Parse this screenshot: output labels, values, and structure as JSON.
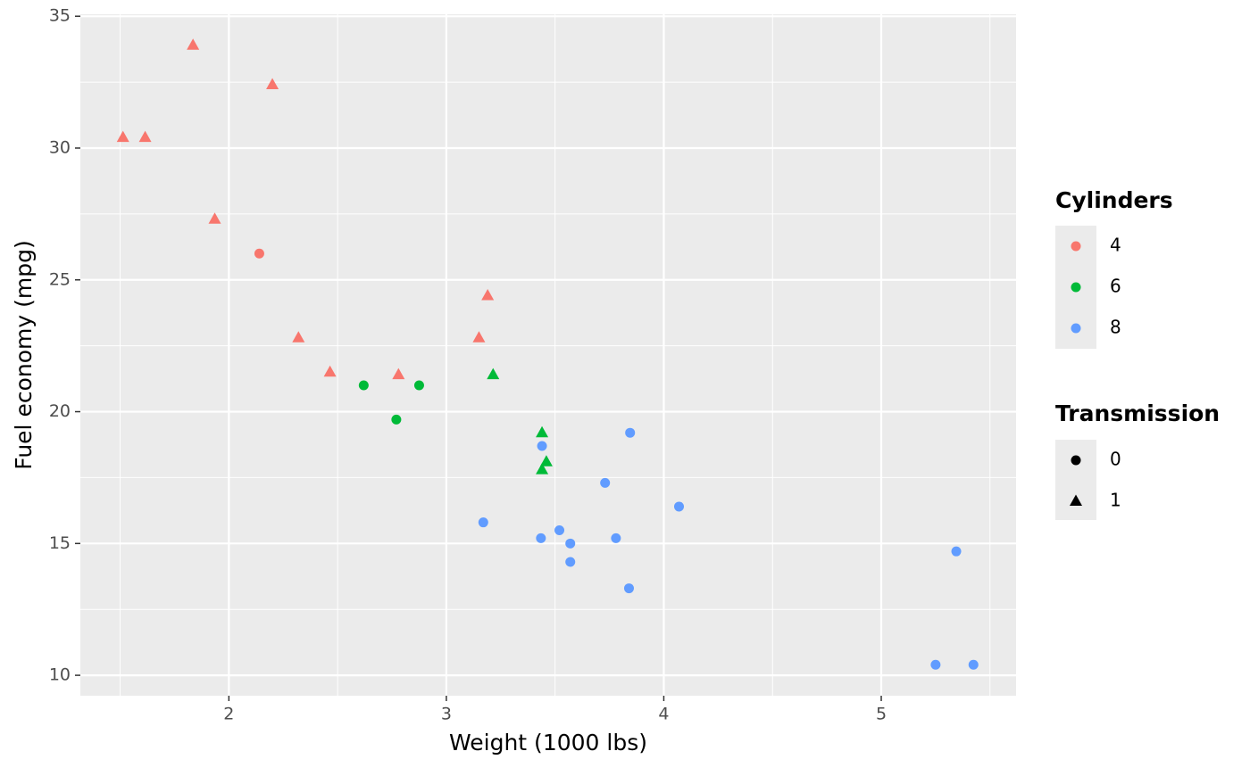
{
  "chart_data": {
    "type": "scatter",
    "x_label": "Weight (1000 lbs)",
    "y_label": "Fuel economy (mpg)",
    "x": [
      2.62,
      2.875,
      2.32,
      3.215,
      3.44,
      3.46,
      3.57,
      3.19,
      3.15,
      3.44,
      3.44,
      4.07,
      3.73,
      3.78,
      5.25,
      5.424,
      5.345,
      2.2,
      1.615,
      1.835,
      2.465,
      3.52,
      3.435,
      3.84,
      3.845,
      1.935,
      2.14,
      1.513,
      3.17,
      2.77,
      3.57,
      2.78
    ],
    "y": [
      21.0,
      21.0,
      22.8,
      21.4,
      18.7,
      18.1,
      14.3,
      24.4,
      22.8,
      19.2,
      17.8,
      16.4,
      17.3,
      15.2,
      10.4,
      10.4,
      14.7,
      32.4,
      30.4,
      33.9,
      21.5,
      15.5,
      15.2,
      13.3,
      19.2,
      27.3,
      26.0,
      30.4,
      15.8,
      19.7,
      15.0,
      21.4
    ],
    "cylinders": [
      6,
      6,
      4,
      6,
      8,
      6,
      8,
      4,
      4,
      6,
      6,
      8,
      8,
      8,
      8,
      8,
      8,
      4,
      4,
      4,
      4,
      8,
      8,
      8,
      8,
      4,
      4,
      4,
      8,
      6,
      8,
      4
    ],
    "transmission": [
      0,
      0,
      1,
      1,
      0,
      1,
      0,
      1,
      1,
      1,
      1,
      0,
      0,
      0,
      0,
      0,
      0,
      1,
      1,
      1,
      1,
      0,
      0,
      0,
      0,
      1,
      0,
      1,
      0,
      0,
      0,
      1
    ],
    "color_legend": {
      "title": "Cylinders",
      "values": [
        4,
        6,
        8
      ],
      "colors": [
        "#F8766D",
        "#00BA38",
        "#619CFF"
      ]
    },
    "shape_legend": {
      "title": "Transmission",
      "values": [
        0,
        1
      ],
      "shapes": [
        "circle",
        "triangle"
      ]
    },
    "xlim": [
      1.317,
      5.62
    ],
    "ylim": [
      9.225,
      35.075
    ],
    "xticks": [
      2,
      3,
      4,
      5
    ],
    "yticks": [
      10,
      15,
      20,
      25,
      30,
      35
    ],
    "x_minor_ticks": [
      1.5,
      2.5,
      3.5,
      4.5,
      5.5
    ],
    "y_minor_ticks": [
      12.5,
      17.5,
      22.5,
      27.5,
      32.5
    ],
    "grid": true
  }
}
